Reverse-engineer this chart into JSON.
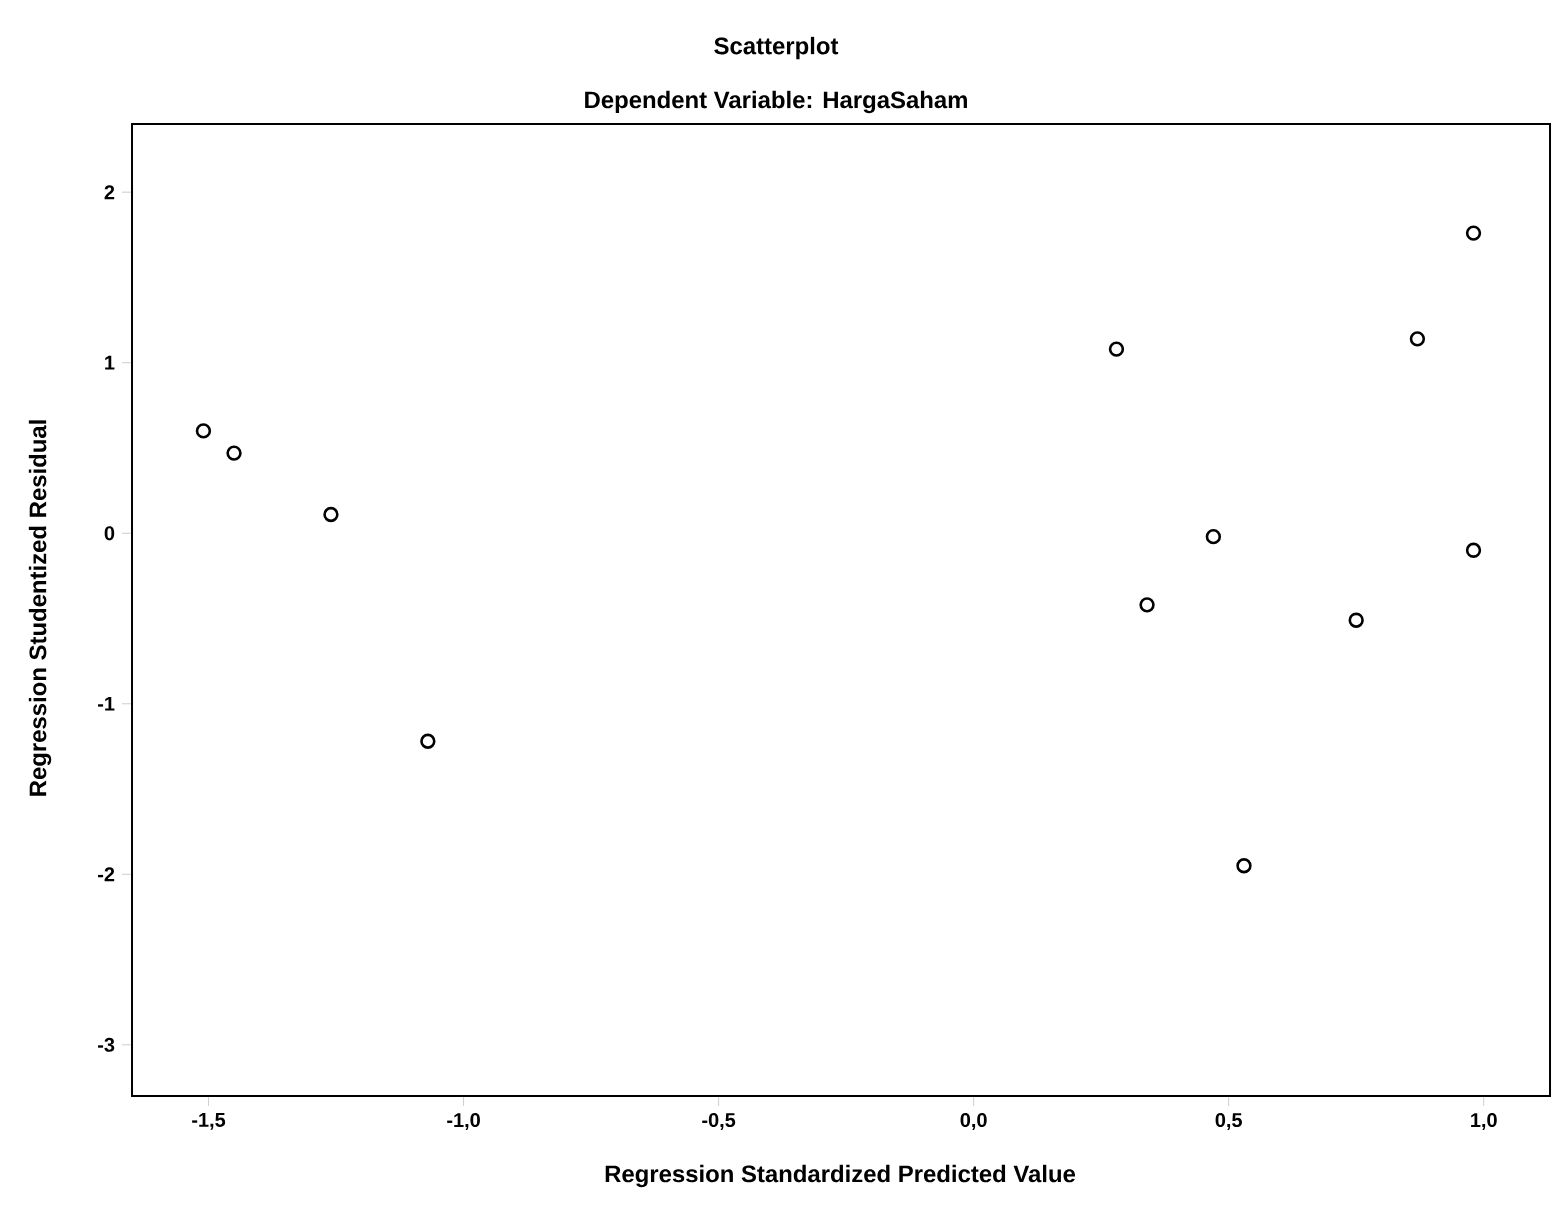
{
  "chart_data": {
    "type": "scatter",
    "title": "Scatterplot",
    "subtitle": "Dependent Variable: HargaSaham",
    "xlabel": "Regression Standardized Predicted Value",
    "ylabel": "Regression Studentized Residual",
    "x": [
      -1.51,
      -1.45,
      -1.26,
      -1.07,
      0.28,
      0.34,
      0.47,
      0.53,
      0.75,
      0.87,
      0.98,
      0.98
    ],
    "series": [
      {
        "color": "#000000",
        "values": [
          0.6,
          0.47,
          0.11,
          -1.22,
          1.08,
          -0.42,
          -0.02,
          -1.95,
          -0.51,
          1.14,
          1.76,
          -0.1
        ]
      }
    ],
    "xlim": [
      -1.65,
      1.13
    ],
    "ylim": [
      -3.3,
      2.4
    ],
    "xticks": [
      {
        "value": -1.5,
        "label": "-1,5"
      },
      {
        "value": -1.0,
        "label": "-1,0"
      },
      {
        "value": -0.5,
        "label": "-0,5"
      },
      {
        "value": 0.0,
        "label": "0,0"
      },
      {
        "value": 0.5,
        "label": "0,5"
      },
      {
        "value": 1.0,
        "label": "1,0"
      }
    ],
    "yticks": [
      -3,
      -2,
      -1,
      0,
      1,
      2
    ],
    "grid": false,
    "marker": "circle"
  }
}
